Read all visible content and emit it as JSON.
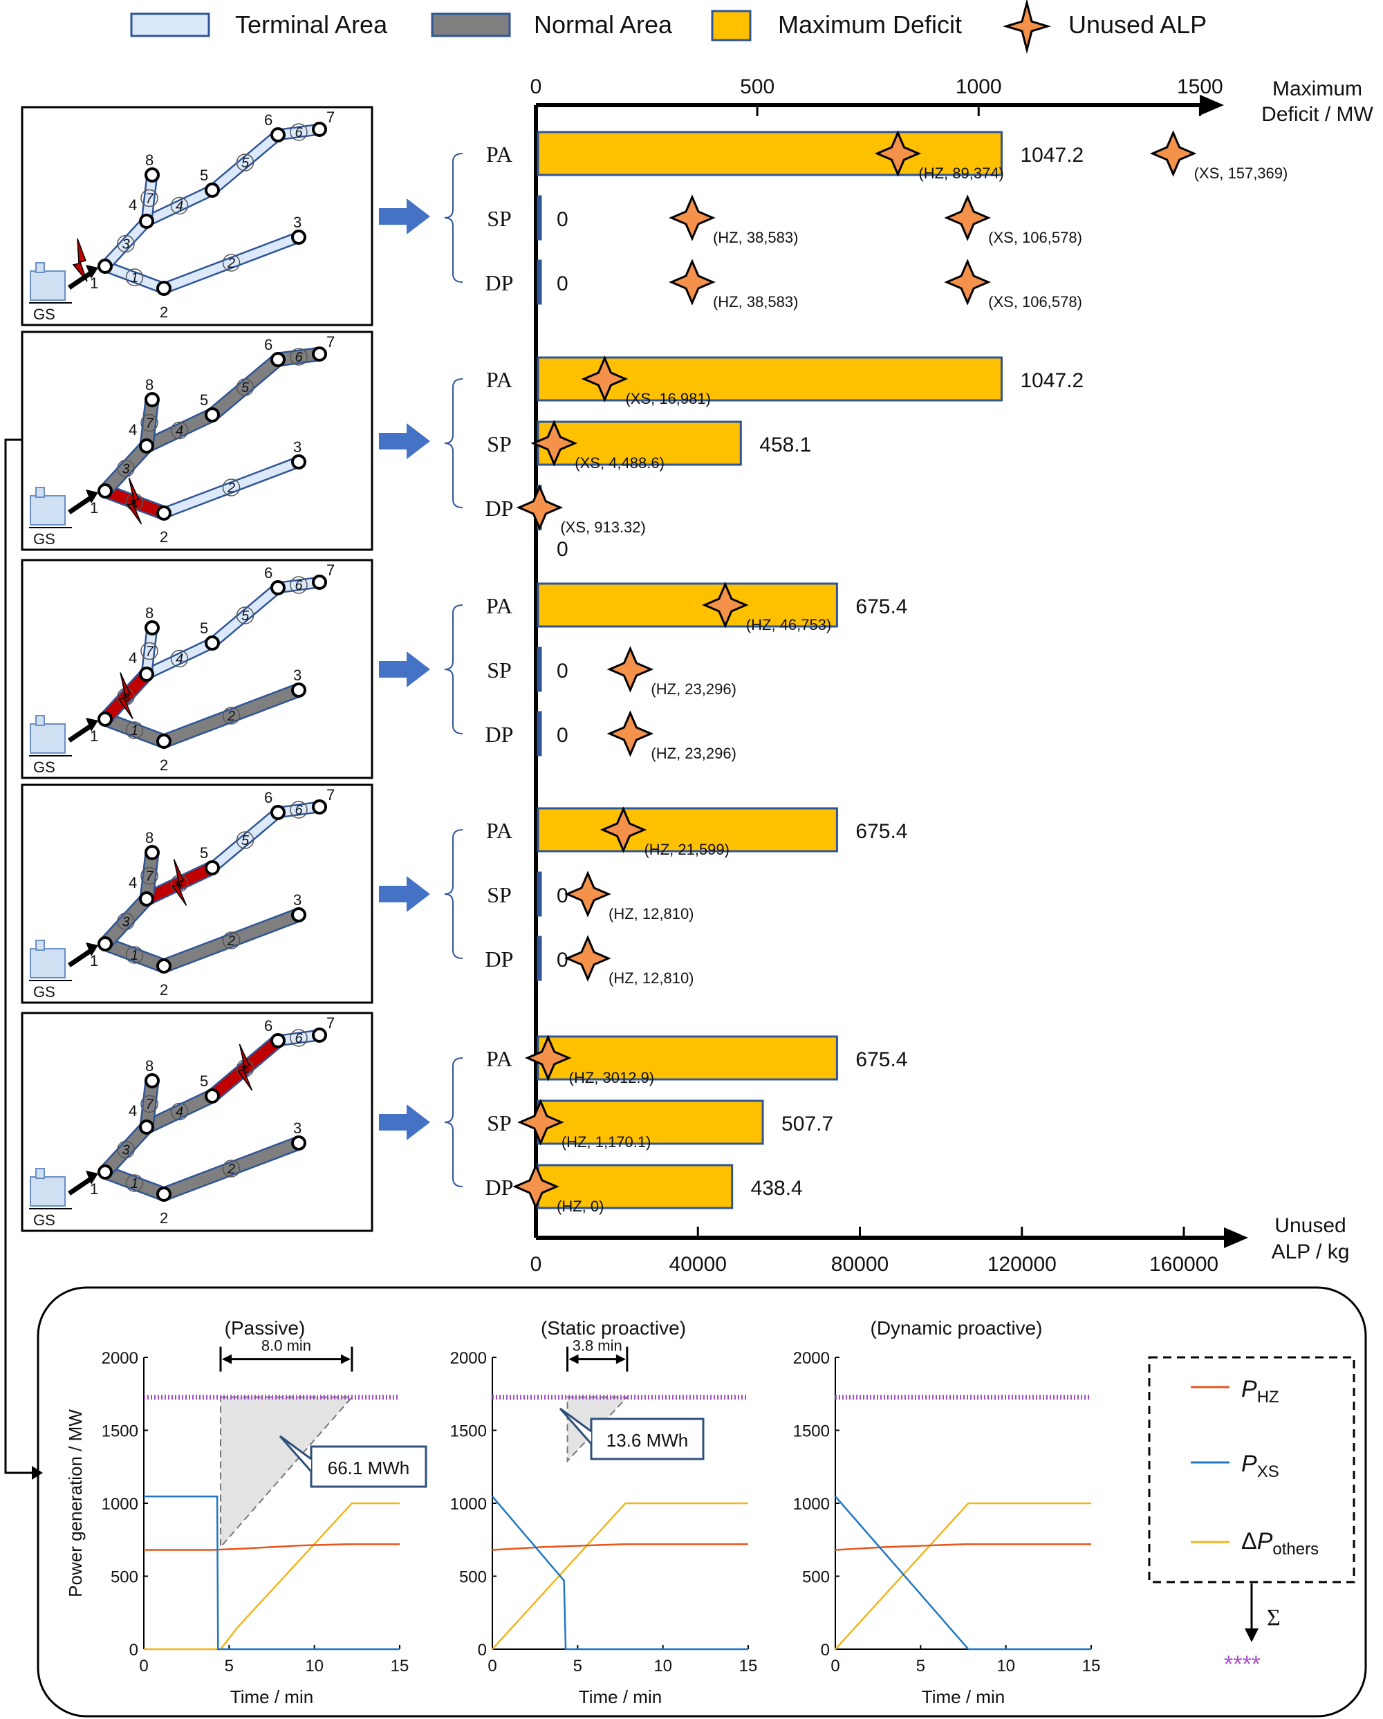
{
  "legend": {
    "terminal": "Terminal Area",
    "normal": "Normal Area",
    "deficit": "Maximum Deficit",
    "alp": "Unused ALP"
  },
  "colors": {
    "terminal_fill": "#dbe9fa",
    "terminal_stroke": "#2f5597",
    "normal_fill": "#7f7f7f",
    "fault_fill": "#c00000",
    "bar_fill": "#ffc000",
    "bar_stroke": "#2f5597",
    "star_fill": "#f4914b",
    "arrow_fill": "#4472c4",
    "line_hz": "#e8541b",
    "line_xs": "#1f77c4",
    "line_others": "#f2b51c",
    "sum_marker": "#a64ac9"
  },
  "network": {
    "station_label": "GS",
    "node_labels": [
      "1",
      "2",
      "3",
      "4",
      "5",
      "6",
      "7",
      "8"
    ],
    "branch_labels": [
      "1",
      "2",
      "3",
      "4",
      "5",
      "6",
      "7"
    ]
  },
  "chart_data": [
    {
      "type": "bar",
      "title": "",
      "xlabel_top": [
        "Maximum",
        "Deficit / MW"
      ],
      "xlabel_bottom": [
        "Unused",
        "ALP / kg"
      ],
      "top_axis": {
        "range": [
          0,
          1640
        ],
        "ticks": [
          0,
          500,
          1000,
          1500
        ]
      },
      "bottom_axis": {
        "range": [
          0,
          181000
        ],
        "ticks": [
          0,
          40000,
          80000,
          120000,
          160000
        ]
      },
      "categories": [
        "PA",
        "SP",
        "DP"
      ],
      "groups": [
        {
          "scenario": 1,
          "bars": [
            {
              "cat": "PA",
              "value": 1047.2,
              "value_text": "1047.2",
              "alps": [
                {
                  "gen": "HZ",
                  "value": 89374,
                  "text": "(HZ, 89,374)"
                },
                {
                  "gen": "XS",
                  "value": 157369,
                  "text": "(XS, 157,369)"
                }
              ]
            },
            {
              "cat": "SP",
              "value": 0,
              "value_text": "0",
              "alps": [
                {
                  "gen": "HZ",
                  "value": 38583,
                  "text": "(HZ, 38,583)"
                },
                {
                  "gen": "XS",
                  "value": 106578,
                  "text": "(XS, 106,578)"
                }
              ]
            },
            {
              "cat": "DP",
              "value": 0,
              "value_text": "0",
              "alps": [
                {
                  "gen": "HZ",
                  "value": 38583,
                  "text": "(HZ, 38,583)"
                },
                {
                  "gen": "XS",
                  "value": 106578,
                  "text": "(XS, 106,578)"
                }
              ]
            }
          ]
        },
        {
          "scenario": 2,
          "bars": [
            {
              "cat": "PA",
              "value": 1047.2,
              "value_text": "1047.2",
              "alps": [
                {
                  "gen": "XS",
                  "value": 16981,
                  "text": "(XS, 16,981)"
                }
              ]
            },
            {
              "cat": "SP",
              "value": 458.1,
              "value_text": "458.1",
              "alps": [
                {
                  "gen": "XS",
                  "value": 4488.6,
                  "text": "(XS, 4,488.6)"
                }
              ]
            },
            {
              "cat": "DP",
              "value": 0,
              "value_text": "0",
              "alps": [
                {
                  "gen": "XS",
                  "value": 913.32,
                  "text": "(XS, 913.32)"
                }
              ]
            }
          ]
        },
        {
          "scenario": 3,
          "bars": [
            {
              "cat": "PA",
              "value": 675.4,
              "value_text": "675.4",
              "alps": [
                {
                  "gen": "HZ",
                  "value": 46753,
                  "text": "(HZ, 46,753)"
                }
              ]
            },
            {
              "cat": "SP",
              "value": 0,
              "value_text": "0",
              "alps": [
                {
                  "gen": "HZ",
                  "value": 23296,
                  "text": "(HZ, 23,296)"
                }
              ]
            },
            {
              "cat": "DP",
              "value": 0,
              "value_text": "0",
              "alps": [
                {
                  "gen": "HZ",
                  "value": 23296,
                  "text": "(HZ, 23,296)"
                }
              ]
            }
          ]
        },
        {
          "scenario": 4,
          "bars": [
            {
              "cat": "PA",
              "value": 675.4,
              "value_text": "675.4",
              "alps": [
                {
                  "gen": "HZ",
                  "value": 21599,
                  "text": "(HZ, 21,599)"
                }
              ]
            },
            {
              "cat": "SP",
              "value": 0,
              "value_text": "0",
              "alps": [
                {
                  "gen": "HZ",
                  "value": 12810,
                  "text": "(HZ, 12,810)"
                }
              ]
            },
            {
              "cat": "DP",
              "value": 0,
              "value_text": "0",
              "alps": [
                {
                  "gen": "HZ",
                  "value": 12810,
                  "text": "(HZ, 12,810)"
                }
              ]
            }
          ]
        },
        {
          "scenario": 5,
          "bars": [
            {
              "cat": "PA",
              "value": 675.4,
              "value_text": "675.4",
              "alps": [
                {
                  "gen": "HZ",
                  "value": 3012.9,
                  "text": "(HZ, 3012.9)"
                }
              ]
            },
            {
              "cat": "SP",
              "value": 507.7,
              "value_text": "507.7",
              "alps": [
                {
                  "gen": "HZ",
                  "value": 1170.1,
                  "text": "(HZ, 1,170.1)"
                }
              ]
            },
            {
              "cat": "DP",
              "value": 438.4,
              "value_text": "438.4",
              "alps": [
                {
                  "gen": "HZ",
                  "value": 0,
                  "text": "(HZ, 0)"
                }
              ]
            }
          ]
        }
      ]
    },
    {
      "type": "line",
      "ylabel": "Power generation / MW",
      "xlabel": "Time / min",
      "xlim": [
        0,
        15
      ],
      "ylim": [
        0,
        2000
      ],
      "xticks": [
        0,
        5,
        10,
        15
      ],
      "yticks": [
        0,
        500,
        1000,
        1500,
        2000
      ],
      "legend": {
        "hz": "HZ",
        "xs": "XS",
        "others": "others"
      },
      "sum_symbol": "Σ",
      "sum_marker_text": "****",
      "panels": [
        {
          "title": "(Passive)",
          "area_mwh": "66.1 MWh",
          "duration": "8.0 min",
          "deficit_window": [
            4.5,
            12.2
          ],
          "series": {
            "hz": [
              [
                0,
                680
              ],
              [
                4,
                680
              ],
              [
                6,
                690
              ],
              [
                9,
                710
              ],
              [
                12,
                720
              ],
              [
                15,
                720
              ]
            ],
            "xs": [
              [
                0,
                1047
              ],
              [
                4.3,
                1047
              ],
              [
                4.35,
                0
              ],
              [
                15,
                0
              ]
            ],
            "others": [
              [
                0,
                0
              ],
              [
                4.5,
                0
              ],
              [
                5.5,
                150
              ],
              [
                12.2,
                1000
              ],
              [
                15,
                1000
              ]
            ],
            "total": [
              [
                0,
                1727
              ],
              [
                15,
                1727
              ]
            ]
          }
        },
        {
          "title": "(Static proactive)",
          "area_mwh": "13.6 MWh",
          "duration": "3.8 min",
          "deficit_window": [
            4.4,
            7.9
          ],
          "series": {
            "hz": [
              [
                0,
                680
              ],
              [
                3,
                700
              ],
              [
                7.8,
                720
              ],
              [
                15,
                720
              ]
            ],
            "xs": [
              [
                0,
                1047
              ],
              [
                4.2,
                470
              ],
              [
                4.3,
                0
              ],
              [
                15,
                0
              ]
            ],
            "others": [
              [
                0,
                0
              ],
              [
                7.8,
                1000
              ],
              [
                15,
                1000
              ]
            ],
            "total": [
              [
                0,
                1727
              ],
              [
                15,
                1727
              ]
            ]
          }
        },
        {
          "title": "(Dynamic proactive)",
          "area_mwh": "",
          "duration": "",
          "deficit_window": null,
          "series": {
            "hz": [
              [
                0,
                680
              ],
              [
                3,
                700
              ],
              [
                7.8,
                720
              ],
              [
                15,
                720
              ]
            ],
            "xs": [
              [
                0,
                1047
              ],
              [
                7.8,
                0
              ],
              [
                15,
                0
              ]
            ],
            "others": [
              [
                0,
                0
              ],
              [
                7.8,
                1000
              ],
              [
                15,
                1000
              ]
            ],
            "total": [
              [
                0,
                1727
              ],
              [
                15,
                1727
              ]
            ]
          }
        }
      ]
    }
  ]
}
